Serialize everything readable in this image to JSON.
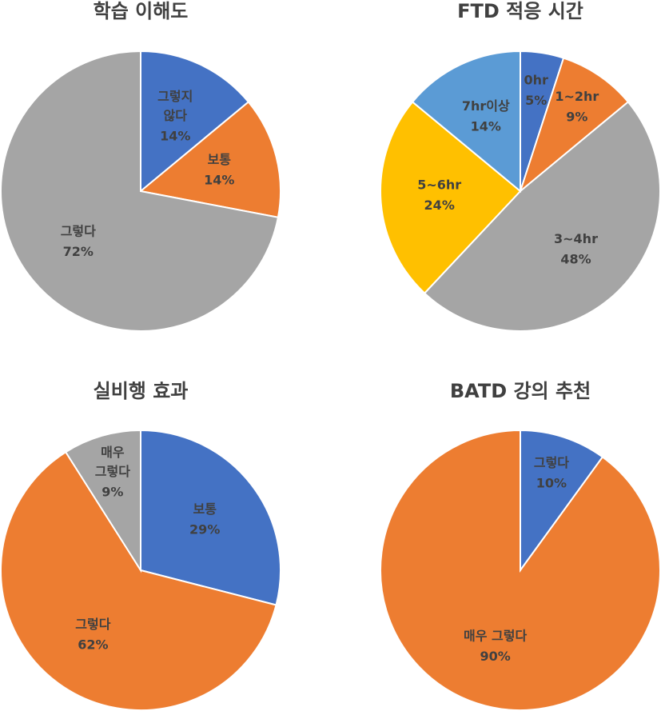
{
  "chart_data": [
    {
      "type": "pie",
      "title": "학습 이해도",
      "categories": [
        "그렇지\n않다",
        "보통",
        "그렇다"
      ],
      "values": [
        14,
        14,
        72
      ],
      "value_labels": [
        "14%",
        "14%",
        "72%"
      ],
      "colors": [
        "#4472c4",
        "#ed7d31",
        "#a5a5a5"
      ]
    },
    {
      "type": "pie",
      "title": "FTD 적응 시간",
      "categories": [
        "0hr",
        "1~2hr",
        "3~4hr",
        "5~6hr",
        "7hr이상"
      ],
      "values": [
        5,
        9,
        48,
        24,
        14
      ],
      "value_labels": [
        "5%",
        "9%",
        "48%",
        "24%",
        "14%"
      ],
      "colors": [
        "#4472c4",
        "#ed7d31",
        "#a5a5a5",
        "#ffc000",
        "#5b9bd5"
      ]
    },
    {
      "type": "pie",
      "title": "실비행 효과",
      "categories": [
        "보통",
        "그렇다",
        "매우\n그렇다"
      ],
      "values": [
        29,
        62,
        9
      ],
      "value_labels": [
        "29%",
        "62%",
        "9%"
      ],
      "colors": [
        "#4472c4",
        "#ed7d31",
        "#a5a5a5"
      ]
    },
    {
      "type": "pie",
      "title": "BATD 강의 추천",
      "categories": [
        "그렇다",
        "매우 그렇다"
      ],
      "values": [
        10,
        90
      ],
      "value_labels": [
        "10%",
        "90%"
      ],
      "colors": [
        "#4472c4",
        "#ed7d31"
      ]
    }
  ]
}
